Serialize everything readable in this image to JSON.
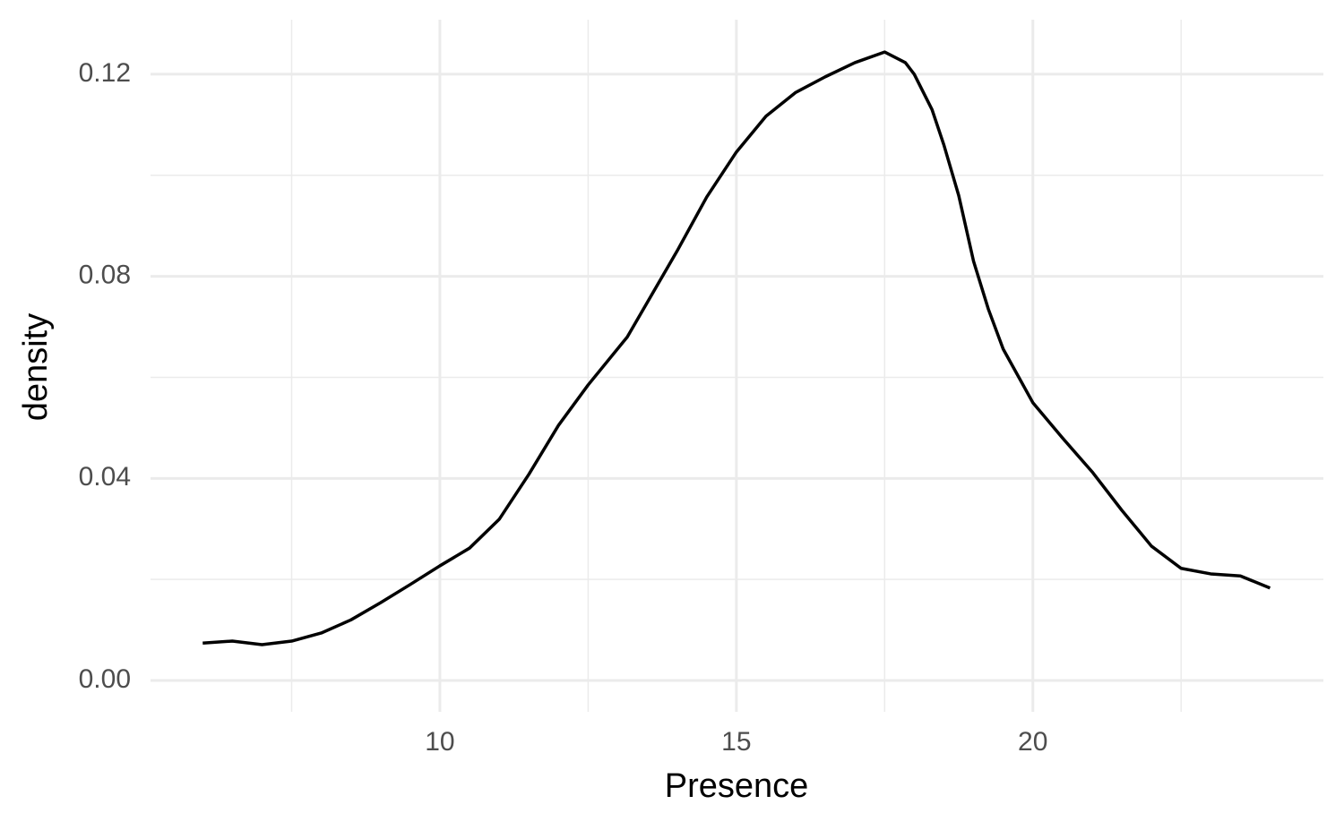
{
  "chart_data": {
    "type": "line",
    "x_label": "Presence",
    "y_label": "density",
    "x": [
      6,
      6.5,
      7,
      7.5,
      8,
      8.5,
      9,
      9.5,
      10,
      10.5,
      11,
      11.5,
      12,
      12.5,
      13.16,
      14,
      14.5,
      15,
      15.5,
      16,
      16.5,
      17,
      17.5,
      17.85,
      18,
      18.3,
      18.5,
      18.75,
      19,
      19.25,
      19.5,
      20,
      20.5,
      21,
      21.5,
      22,
      22.5,
      23,
      23.5,
      24
    ],
    "values": [
      0.0074,
      0.0078,
      0.0071,
      0.0078,
      0.0094,
      0.012,
      0.0154,
      0.019,
      0.0227,
      0.0262,
      0.0319,
      0.0408,
      0.0505,
      0.0585,
      0.068,
      0.085,
      0.0957,
      0.1046,
      0.1117,
      0.1164,
      0.1195,
      0.1223,
      0.1244,
      0.1223,
      0.12,
      0.113,
      0.106,
      0.096,
      0.083,
      0.0735,
      0.0656,
      0.055,
      0.048,
      0.0413,
      0.0337,
      0.0266,
      0.0222,
      0.0211,
      0.0207,
      0.0183
    ],
    "color": "#000000",
    "xlim": [
      5.12,
      24.9
    ],
    "xticks": [
      10,
      15,
      20
    ],
    "ylim": [
      -0.0062,
      0.1308
    ],
    "yticks": [
      {
        "value": 0,
        "label": "0.00"
      },
      {
        "value": 0.04,
        "label": "0.04"
      },
      {
        "value": 0.08,
        "label": "0.08"
      },
      {
        "value": 0.12,
        "label": "0.12"
      }
    ],
    "grid": true
  }
}
